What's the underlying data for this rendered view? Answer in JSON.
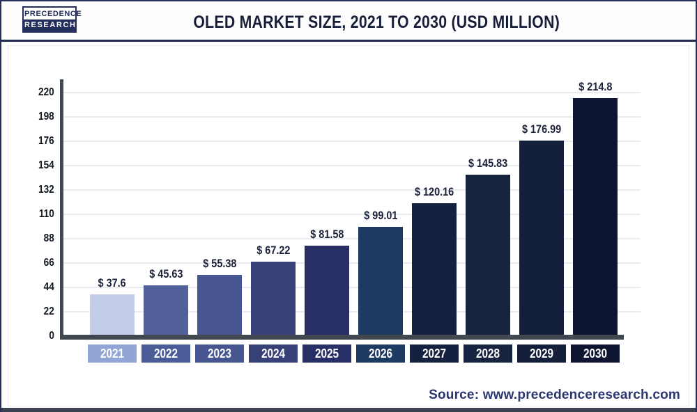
{
  "header": {
    "logo": {
      "line1": "PRECEDENCE",
      "line2": "RESEARCH"
    },
    "title": "OLED MARKET SIZE, 2021 TO 2030 (USD MILLION)"
  },
  "chart_data": {
    "type": "bar",
    "title": "OLED Market Size, 2021 to 2030 (USD Million)",
    "unit": "USD Million",
    "categories": [
      "2021",
      "2022",
      "2023",
      "2024",
      "2025",
      "2026",
      "2027",
      "2028",
      "2029",
      "2030"
    ],
    "values": [
      37.6,
      45.63,
      55.38,
      67.22,
      81.58,
      99.01,
      120.16,
      145.83,
      176.99,
      214.8
    ],
    "value_labels": [
      "$ 37.6",
      "$ 45.63",
      "$ 55.38",
      "$ 67.22",
      "$ 81.58",
      "$ 99.01",
      "$ 120.16",
      "$ 145.83",
      "$ 176.99",
      "$ 214.8"
    ],
    "bar_colors": [
      "#c3cde8",
      "#52609c",
      "#475591",
      "#384078",
      "#272f66",
      "#1d3a62",
      "#15213f",
      "#172440",
      "#141f3b",
      "#0d1530"
    ],
    "label_box_colors": [
      "#92a5d6",
      "#4c5c98",
      "#475591",
      "#384078",
      "#272f66",
      "#1d3a62",
      "#15213f",
      "#172440",
      "#141f3b",
      "#0d1530"
    ],
    "yticks": [
      0,
      22,
      44,
      66,
      88,
      110,
      132,
      154,
      176,
      198,
      220
    ],
    "ylim": [
      0,
      220
    ],
    "grid": true,
    "legend": null,
    "axis_color": "#42484f",
    "gridline_color": "#eaebf0"
  },
  "footer": {
    "source": "Source: www.precedenceresearch.com"
  }
}
